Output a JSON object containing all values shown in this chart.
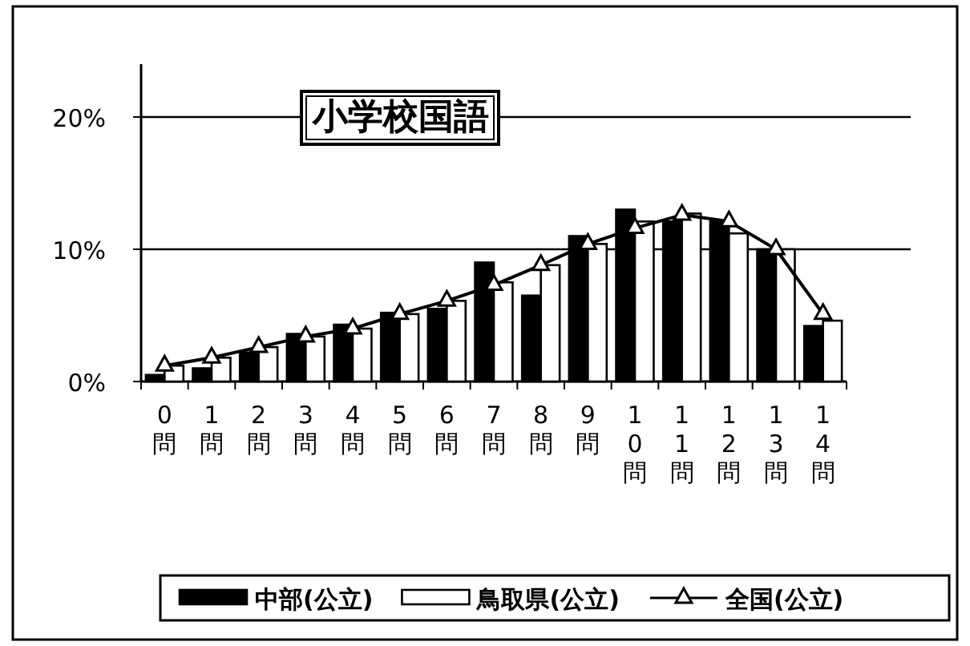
{
  "chart_data": {
    "type": "bar",
    "title": "小学校国語",
    "categories": [
      "0問",
      "1問",
      "2問",
      "3問",
      "4問",
      "5問",
      "6問",
      "7問",
      "8問",
      "9問",
      "10問",
      "11問",
      "12問",
      "13問",
      "14問"
    ],
    "series": [
      {
        "name": "中部(公立)",
        "color": "#000000",
        "values": [
          0.5,
          1.0,
          2.2,
          3.6,
          4.3,
          5.2,
          5.5,
          9.0,
          6.5,
          11.0,
          13.0,
          12.1,
          12.1,
          10.0,
          4.2
        ]
      },
      {
        "name": "鳥取県(公立)",
        "color": "#ffffff",
        "values": [
          1.2,
          1.8,
          2.6,
          3.4,
          4.0,
          5.1,
          6.1,
          7.5,
          8.8,
          10.4,
          12.1,
          12.7,
          11.2,
          10.0,
          4.6
        ]
      },
      {
        "name": "全国(公立)",
        "type": "line",
        "color": "#000000",
        "marker": "triangle",
        "values": [
          1.2,
          1.8,
          2.6,
          3.4,
          4.0,
          5.1,
          6.1,
          7.3,
          8.8,
          10.4,
          11.6,
          12.6,
          12.1,
          10.0,
          5.1
        ]
      }
    ],
    "ylim": [
      0,
      24
    ],
    "yticks": [
      {
        "value": 0,
        "label": "0%"
      },
      {
        "value": 10,
        "label": "10%"
      },
      {
        "value": 20,
        "label": "20%"
      }
    ],
    "grid": "y",
    "legend": "bottom"
  }
}
